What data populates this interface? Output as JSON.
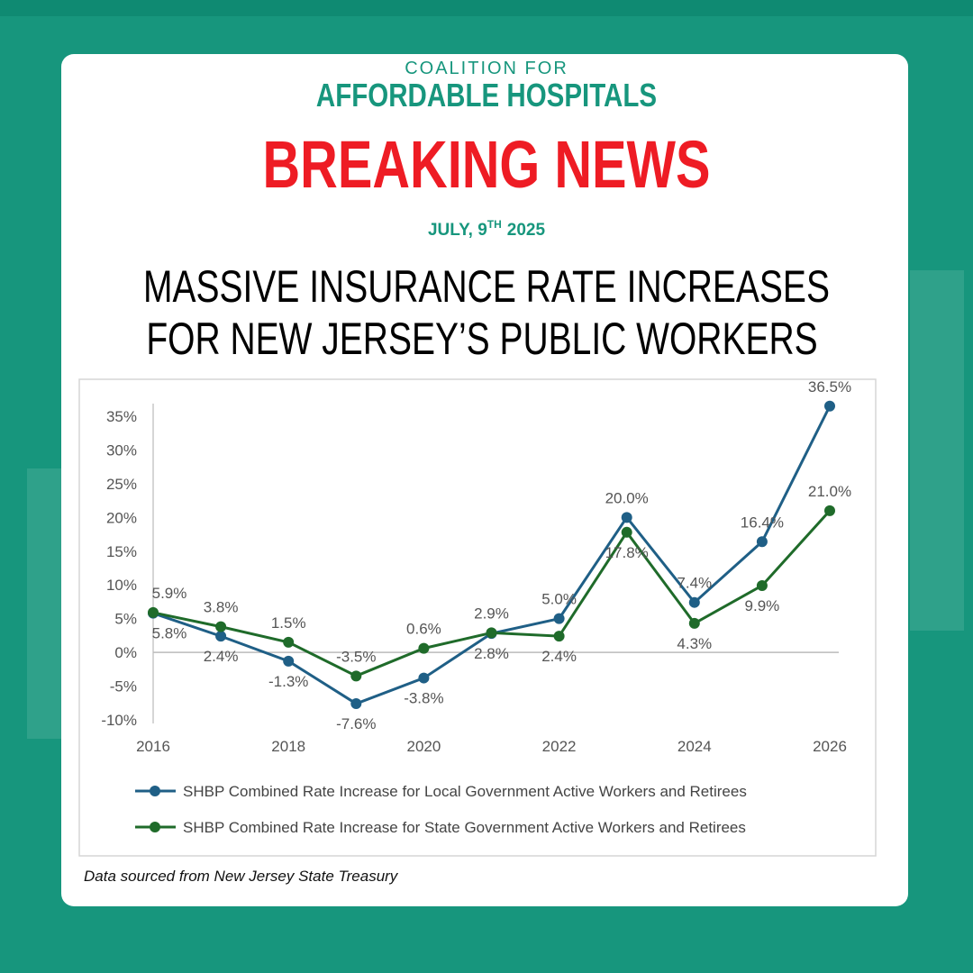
{
  "header": {
    "kicker": "COALITION FOR",
    "org": "AFFORDABLE HOSPITALS",
    "banner": "BREAKING NEWS",
    "date": {
      "prefix": "JULY, 9",
      "superscript": "TH",
      "suffix": "2025"
    },
    "headline": [
      "MASSIVE INSURANCE RATE INCREASES",
      "FOR NEW JERSEY’S PUBLIC WORKERS"
    ]
  },
  "chart_data": {
    "type": "line",
    "x": [
      2016,
      2017,
      2018,
      2019,
      2020,
      2021,
      2022,
      2023,
      2024,
      2025,
      2026
    ],
    "xlim": [
      2016,
      2026
    ],
    "xticks": [
      2016,
      2018,
      2020,
      2022,
      2024,
      2026
    ],
    "ylim": [
      -10,
      35
    ],
    "yticks": [
      {
        "value": -10,
        "label": "-10%"
      },
      {
        "value": -5,
        "label": "-5%"
      },
      {
        "value": 0,
        "label": "0%"
      },
      {
        "value": 5,
        "label": "5%"
      },
      {
        "value": 10,
        "label": "10%"
      },
      {
        "value": 15,
        "label": "15%"
      },
      {
        "value": 20,
        "label": "20%"
      },
      {
        "value": 25,
        "label": "25%"
      },
      {
        "value": 30,
        "label": "30%"
      },
      {
        "value": 35,
        "label": "35%"
      }
    ],
    "legend": "bottom",
    "series": [
      {
        "name": "SHBP Combined Rate Increase for Local Government Active Workers and Retirees",
        "color": "#1f5f86",
        "values": [
          5.8,
          2.4,
          -1.3,
          -7.6,
          -3.8,
          2.8,
          5.0,
          20.0,
          7.4,
          16.4,
          36.5
        ],
        "value_labels": [
          "5.8%",
          "2.4%",
          "-1.3%",
          "-7.6%",
          "-3.8%",
          "2.8%",
          "5.0%",
          "20.0%",
          "7.4%",
          "16.4%",
          "36.5%"
        ]
      },
      {
        "name": "SHBP Combined Rate Increase for State Government Active Workers and Retirees",
        "color": "#1f6b2a",
        "values": [
          5.9,
          3.8,
          1.5,
          -3.5,
          0.6,
          2.9,
          2.4,
          17.8,
          4.3,
          9.9,
          21.0
        ],
        "value_labels": [
          "5.9%",
          "3.8%",
          "1.5%",
          "-3.5%",
          "0.6%",
          "2.9%",
          "2.4%",
          "17.8%",
          "4.3%",
          "9.9%",
          "21.0%"
        ]
      }
    ]
  },
  "source": "Data sourced from New Jersey State Treasury"
}
